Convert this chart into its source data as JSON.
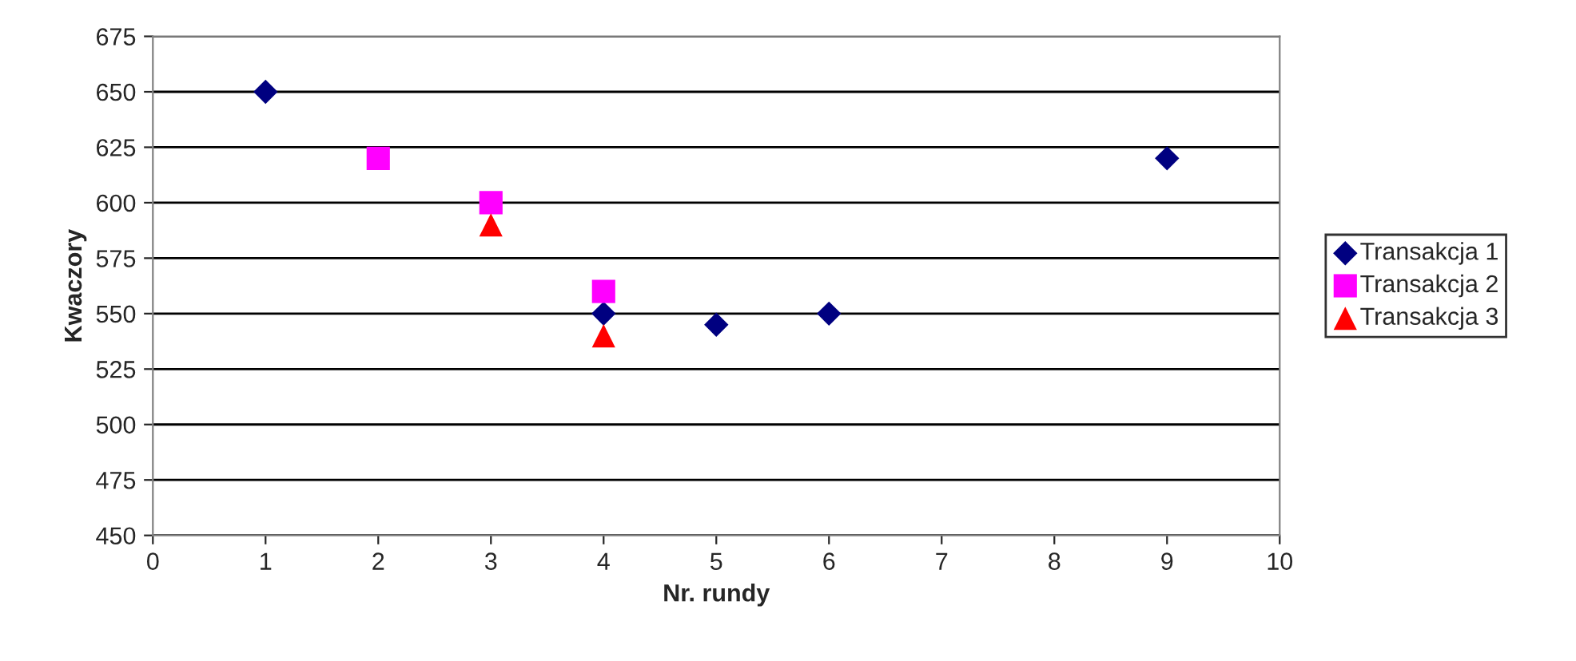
{
  "chart_data": {
    "type": "scatter",
    "xlabel": "Nr. rundy",
    "ylabel": "Kwaczory",
    "series": [
      {
        "name": "Transakcja 1",
        "color": "#000080",
        "marker": "diamond",
        "x": [
          1,
          2,
          4,
          5,
          6,
          9
        ],
        "values": [
          650,
          null,
          550,
          545,
          550,
          620
        ]
      },
      {
        "name": "Transakcja 2",
        "color": "#ff00ff",
        "marker": "square",
        "x": [
          2,
          3,
          4
        ],
        "values": [
          620,
          600,
          560
        ]
      },
      {
        "name": "Transakcja 3",
        "color": "#ff0000",
        "marker": "triangle",
        "x": [
          3,
          4
        ],
        "values": [
          590,
          540
        ]
      }
    ],
    "xlim": [
      0,
      10
    ],
    "xticks": [
      0,
      1,
      2,
      3,
      4,
      5,
      6,
      7,
      8,
      9,
      10
    ],
    "ylim": [
      450,
      675
    ],
    "yticks": [
      450,
      475,
      500,
      525,
      550,
      575,
      600,
      625,
      650,
      675
    ],
    "grid": "y",
    "legend": "right"
  }
}
